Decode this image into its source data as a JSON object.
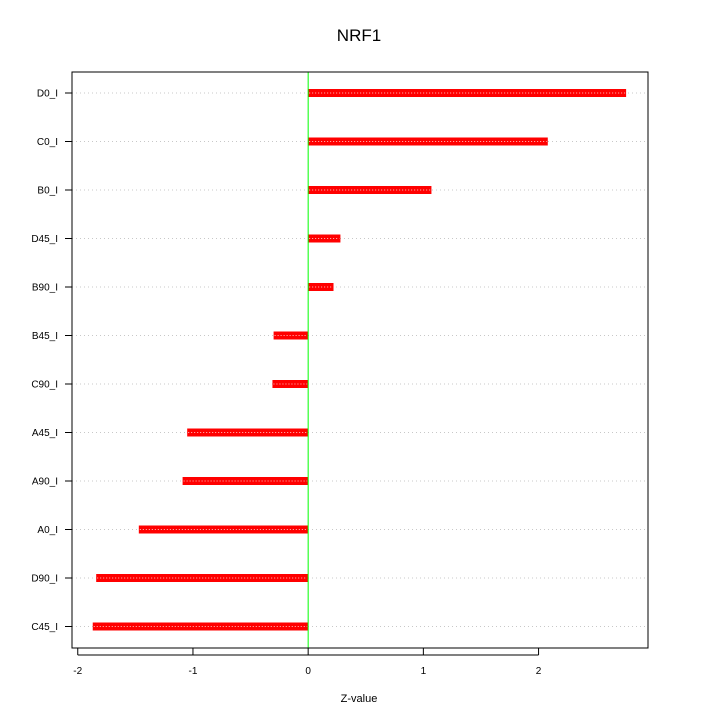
{
  "chart_data": {
    "type": "bar",
    "orientation": "horizontal",
    "title": "NRF1",
    "xlabel": "Z-value",
    "ylabel": "",
    "xlim": [
      -2.05,
      2.95
    ],
    "x_ticks": [
      -2,
      -1,
      0,
      1,
      2
    ],
    "grid": "horizontal dotted",
    "categories": [
      "D0_I",
      "C0_I",
      "B0_I",
      "D45_I",
      "B90_I",
      "B45_I",
      "C90_I",
      "A45_I",
      "A90_I",
      "A0_I",
      "D90_I",
      "C45_I"
    ],
    "values": [
      2.76,
      2.08,
      1.07,
      0.28,
      0.22,
      -0.3,
      -0.31,
      -1.05,
      -1.09,
      -1.47,
      -1.84,
      -1.87
    ],
    "colors": {
      "bar": "#ff0000",
      "bar_highlight": "#ffc0c0",
      "zero_line": "#00ff00",
      "grid": "#c8c8c8",
      "axis": "#000000"
    }
  }
}
